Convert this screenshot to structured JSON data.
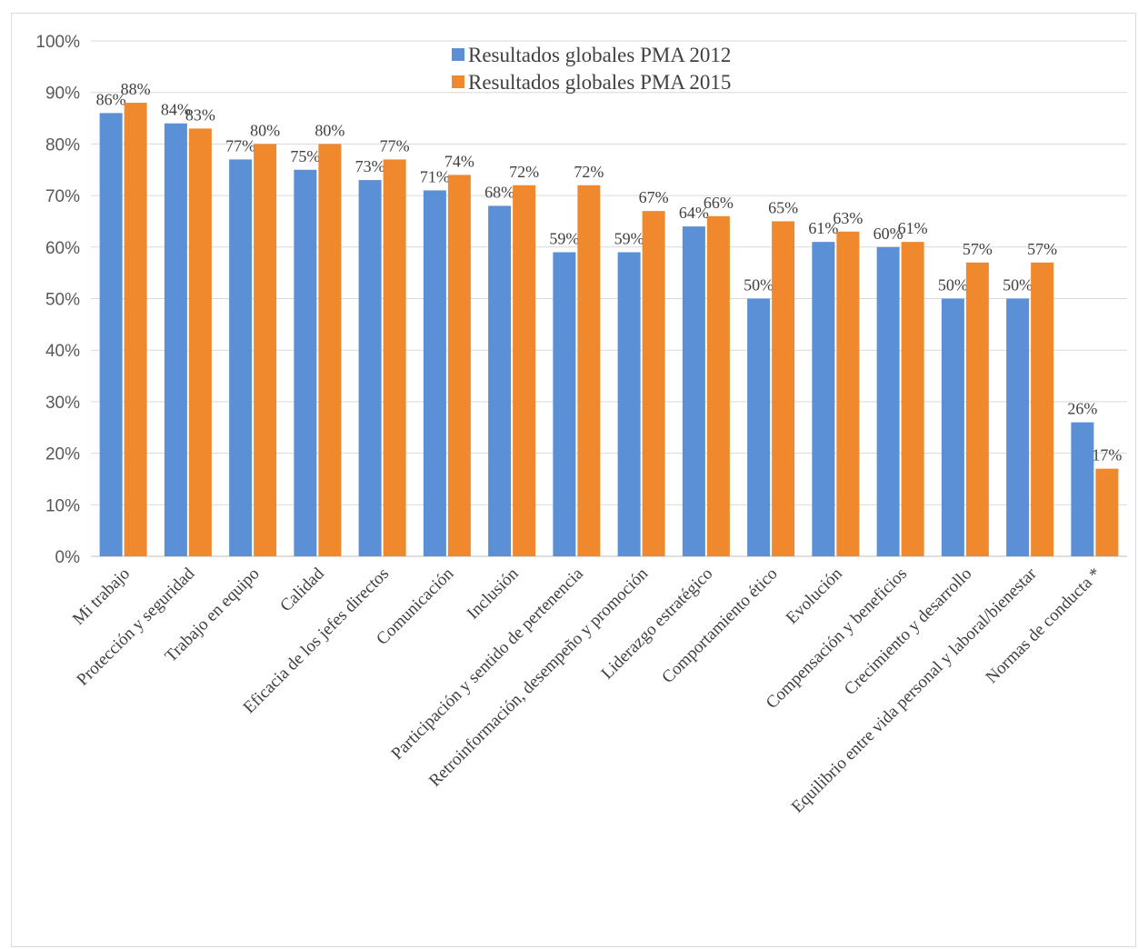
{
  "chart_data": {
    "type": "bar",
    "categories": [
      "Mi trabajo",
      "Protección y seguridad",
      "Trabajo en equipo",
      "Calidad",
      "Eficacia de los jefes directos",
      "Comunicación",
      "Inclusión",
      "Participación y sentido de pertenencia",
      "Retroinformación, desempeño y promoción",
      "Liderazgo estratégico",
      "Comportamiento ético",
      "Evolución",
      "Compensación y beneficios",
      "Crecimiento y desarrollo",
      "Equilibrio entre vida personal y laboral/bienestar",
      "Normas de conducta *"
    ],
    "series": [
      {
        "name": "Resultados globales PMA 2012",
        "color": "#5B8FD6",
        "values": [
          86,
          84,
          77,
          75,
          73,
          71,
          68,
          59,
          59,
          64,
          50,
          61,
          60,
          50,
          50,
          26
        ],
        "labels": [
          "86%",
          "84%",
          "77%",
          "75%",
          "73%",
          "71%",
          "68%",
          "59%",
          "59%",
          "64%",
          "50%",
          "61%",
          "60%",
          "50%",
          "50%",
          "26%"
        ]
      },
      {
        "name": "Resultados globales PMA 2015",
        "color": "#F0892E",
        "values": [
          88,
          83,
          80,
          80,
          77,
          74,
          72,
          72,
          67,
          66,
          65,
          63,
          61,
          57,
          57,
          17
        ],
        "labels": [
          "88%",
          "83%",
          "80%",
          "80%",
          "77%",
          "74%",
          "72%",
          "72%",
          "67%",
          "66%",
          "65%",
          "63%",
          "61%",
          "57%",
          "57%",
          "17%"
        ]
      }
    ],
    "ylim": [
      0,
      100
    ],
    "yticks": [
      "0%",
      "10%",
      "20%",
      "30%",
      "40%",
      "50%",
      "60%",
      "70%",
      "80%",
      "90%",
      "100%"
    ],
    "grid": true,
    "legend_position": "top-center",
    "title": "",
    "xlabel": "",
    "ylabel": ""
  }
}
